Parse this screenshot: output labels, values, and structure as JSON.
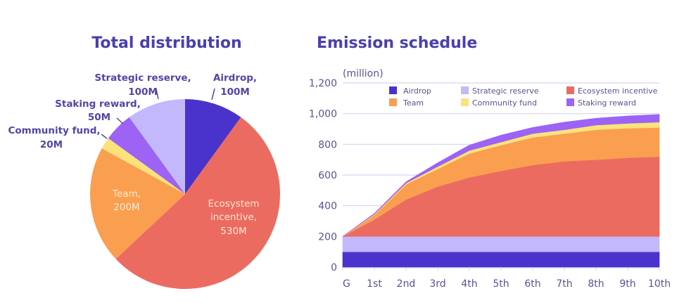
{
  "colors": {
    "title": "#4a3fae",
    "label": "#4f46a8",
    "airdrop": "#4a33cc",
    "strategic_reserve": "#c3b8fb",
    "ecosystem_incentive": "#ec6b61",
    "team": "#fa9f4f",
    "community_fund": "#fbe27a",
    "staking_reward": "#9c63f5",
    "inner_label": "#fde9d2"
  },
  "chart_data": [
    {
      "type": "pie",
      "title": "Total distribution",
      "slices": [
        {
          "name": "Airdrop",
          "value": 100,
          "label_line1": "Airdrop,",
          "label_line2": "100M",
          "color_key": "airdrop"
        },
        {
          "name": "Ecosystem incentive",
          "value": 530,
          "label_line1": "Ecosystem",
          "label_line2": "incentive,",
          "label_line3": "530M",
          "color_key": "ecosystem_incentive"
        },
        {
          "name": "Team",
          "value": 200,
          "label_line1": "Team,",
          "label_line2": "200M",
          "color_key": "team"
        },
        {
          "name": "Community fund",
          "value": 20,
          "label_line1": "Community fund,",
          "label_line2": "20M",
          "color_key": "community_fund"
        },
        {
          "name": "Staking reward",
          "value": 50,
          "label_line1": "Staking reward,",
          "label_line2": "50M",
          "color_key": "staking_reward"
        },
        {
          "name": "Strategic reserve",
          "value": 100,
          "label_line1": "Strategic reserve,",
          "label_line2": "100M",
          "color_key": "strategic_reserve"
        }
      ]
    },
    {
      "type": "area",
      "stacked": true,
      "title": "Emission schedule",
      "ylabel": "(million)",
      "xlabel": "",
      "ylim": [
        0,
        1200
      ],
      "yticks": [
        0,
        200,
        400,
        600,
        800,
        1000,
        1200
      ],
      "ytick_labels": [
        "0",
        "200",
        "400",
        "600",
        "800",
        "1,000",
        "1,200"
      ],
      "categories": [
        "G",
        "1st",
        "2nd",
        "3rd",
        "4th",
        "5th",
        "6th",
        "7th",
        "8th",
        "9th",
        "10th"
      ],
      "grid": true,
      "legend_position": "top",
      "legend": [
        "Airdrop",
        "Strategic reserve",
        "Ecosystem incentive",
        "Team",
        "Community fund",
        "Staking reward"
      ],
      "series": [
        {
          "name": "Airdrop",
          "color_key": "airdrop",
          "values": [
            100,
            100,
            100,
            100,
            100,
            100,
            100,
            100,
            100,
            100,
            100
          ]
        },
        {
          "name": "Strategic reserve",
          "color_key": "strategic_reserve",
          "values": [
            100,
            100,
            100,
            100,
            100,
            100,
            100,
            100,
            100,
            100,
            100
          ]
        },
        {
          "name": "Ecosystem incentive",
          "color_key": "ecosystem_incentive",
          "values": [
            0,
            110,
            240,
            325,
            385,
            427,
            465,
            490,
            500,
            512,
            520
          ]
        },
        {
          "name": "Team",
          "color_key": "team",
          "values": [
            0,
            30,
            100,
            115,
            155,
            168,
            180,
            180,
            195,
            193,
            190
          ]
        },
        {
          "name": "Community fund",
          "color_key": "community_fund",
          "values": [
            0,
            5,
            8,
            15,
            20,
            20,
            25,
            25,
            30,
            32,
            35
          ]
        },
        {
          "name": "Staking reward",
          "color_key": "staking_reward",
          "values": [
            0,
            5,
            8,
            25,
            35,
            45,
            40,
            50,
            45,
            48,
            50
          ]
        }
      ]
    }
  ]
}
